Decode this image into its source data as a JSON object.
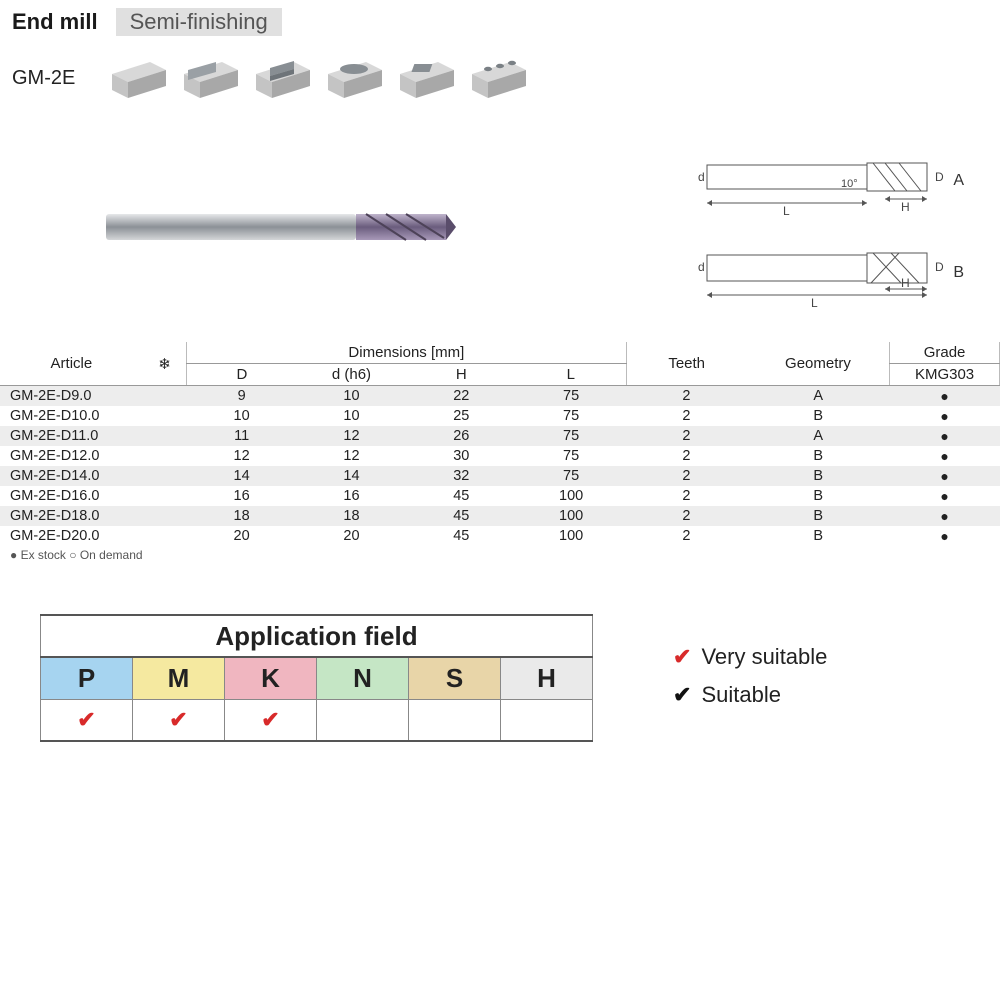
{
  "header": {
    "title": "End mill",
    "subtitle": "Semi-finishing",
    "model": "GM-2E"
  },
  "diagram": {
    "angle": "10°",
    "L": "L",
    "H": "H",
    "d": "d",
    "D": "D",
    "labelA": "A",
    "labelB": "B"
  },
  "table": {
    "group_dimensions": "Dimensions [mm]",
    "group_grade": "Grade",
    "cols": {
      "article": "Article",
      "snow": "❄",
      "D": "D",
      "d": "d (h6)",
      "H": "H",
      "L": "L",
      "teeth": "Teeth",
      "geom": "Geometry",
      "grade": "KMG303"
    },
    "rows": [
      {
        "a": "GM-2E-D9.0",
        "D": "9",
        "d": "10",
        "H": "22",
        "L": "75",
        "t": "2",
        "g": "A",
        "k": "●"
      },
      {
        "a": "GM-2E-D10.0",
        "D": "10",
        "d": "10",
        "H": "25",
        "L": "75",
        "t": "2",
        "g": "B",
        "k": "●"
      },
      {
        "a": "GM-2E-D11.0",
        "D": "11",
        "d": "12",
        "H": "26",
        "L": "75",
        "t": "2",
        "g": "A",
        "k": "●"
      },
      {
        "a": "GM-2E-D12.0",
        "D": "12",
        "d": "12",
        "H": "30",
        "L": "75",
        "t": "2",
        "g": "B",
        "k": "●"
      },
      {
        "a": "GM-2E-D14.0",
        "D": "14",
        "d": "14",
        "H": "32",
        "L": "75",
        "t": "2",
        "g": "B",
        "k": "●"
      },
      {
        "a": "GM-2E-D16.0",
        "D": "16",
        "d": "16",
        "H": "45",
        "L": "100",
        "t": "2",
        "g": "B",
        "k": "●"
      },
      {
        "a": "GM-2E-D18.0",
        "D": "18",
        "d": "18",
        "H": "45",
        "L": "100",
        "t": "2",
        "g": "B",
        "k": "●"
      },
      {
        "a": "GM-2E-D20.0",
        "D": "20",
        "d": "20",
        "H": "45",
        "L": "100",
        "t": "2",
        "g": "B",
        "k": "●"
      }
    ],
    "footnote": "● Ex stock   ○ On demand"
  },
  "application": {
    "title": "Application field",
    "cols": [
      {
        "k": "P",
        "bg": "#a6d4f0",
        "v": "✔",
        "vc": "red"
      },
      {
        "k": "M",
        "bg": "#f5e9a0",
        "v": "✔",
        "vc": "red"
      },
      {
        "k": "K",
        "bg": "#f0b6c0",
        "v": "✔",
        "vc": "red"
      },
      {
        "k": "N",
        "bg": "#c5e6c5",
        "v": "",
        "vc": ""
      },
      {
        "k": "S",
        "bg": "#e8d5a8",
        "v": "",
        "vc": ""
      },
      {
        "k": "H",
        "bg": "#eaeaea",
        "v": "",
        "vc": ""
      }
    ],
    "legend": {
      "very": "Very suitable",
      "suit": "Suitable"
    }
  },
  "colors": {
    "shape_top": "#d8d8d8",
    "shape_side": "#a8a8a8",
    "shape_front": "#c4c4c4",
    "tool_shaft": "#9a9fa5",
    "tool_tip": "#7a6a8c"
  }
}
